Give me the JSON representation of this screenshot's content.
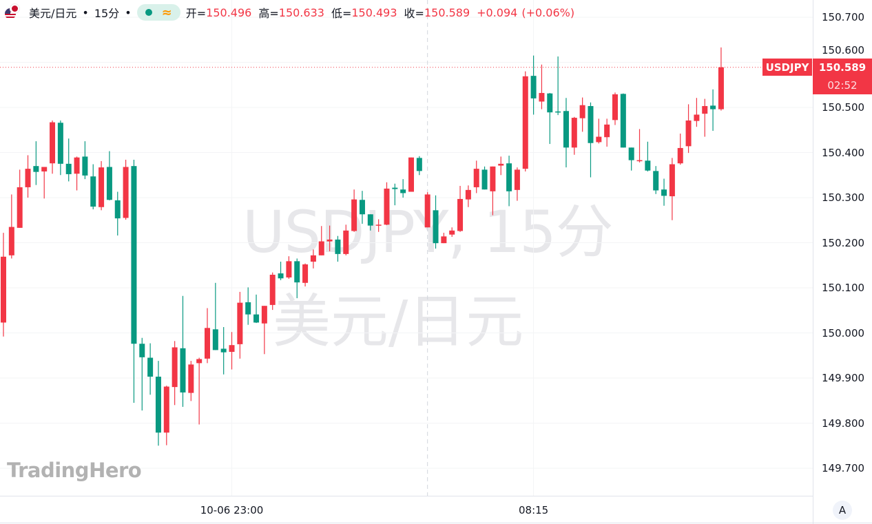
{
  "header": {
    "symbol_name": "美元/日元",
    "sep1": "•",
    "interval": "15分",
    "sep2": "•",
    "status_icon": "market-open-dot",
    "approx_icon": "≈",
    "open_label": "开=",
    "open_value": "150.496",
    "high_label": "高=",
    "high_value": "150.633",
    "low_label": "低=",
    "low_value": "150.493",
    "close_label": "收=",
    "close_value": "150.589",
    "change": "+0.094",
    "change_pct": "(+0.06%)"
  },
  "watermark": {
    "line1": "USDJPY, 15分",
    "line2": "美元/日元"
  },
  "logo": "TradingHero",
  "price_tag": {
    "symbol": "USDJPY",
    "price": "150.589",
    "countdown": "02:52"
  },
  "auto_scale_button": "A",
  "colors": {
    "up": "#F23645",
    "down": "#089981",
    "tag": "#F23645"
  },
  "chart_data": {
    "type": "candlestick",
    "title": "",
    "ylim": [
      149.66,
      150.72
    ],
    "y_ticks": [
      "150.700",
      "150.600",
      "150.500",
      "150.400",
      "150.300",
      "150.200",
      "150.100",
      "150.000",
      "149.900",
      "149.800",
      "149.700"
    ],
    "x_ticks": [
      {
        "label": "10-06 23:00",
        "at_candle": 28
      },
      {
        "label": "08:15",
        "at_candle": 65
      }
    ],
    "crosshair_at_candle": 52,
    "last_price_line": 150.589,
    "grid": true,
    "fields": [
      "open",
      "high",
      "low",
      "close"
    ],
    "candles": [
      [
        150.023,
        150.222,
        149.992,
        150.169
      ],
      [
        150.172,
        150.307,
        150.165,
        150.235
      ],
      [
        150.233,
        150.362,
        150.233,
        150.323
      ],
      [
        150.323,
        150.394,
        150.3,
        150.364
      ],
      [
        150.37,
        150.425,
        150.328,
        150.357
      ],
      [
        150.358,
        150.368,
        150.298,
        150.368
      ],
      [
        150.376,
        150.471,
        150.353,
        150.467
      ],
      [
        150.466,
        150.471,
        150.35,
        150.375
      ],
      [
        150.375,
        150.431,
        150.336,
        150.352
      ],
      [
        150.353,
        150.391,
        150.316,
        150.389
      ],
      [
        150.391,
        150.425,
        150.341,
        150.349
      ],
      [
        150.347,
        150.374,
        150.274,
        150.28
      ],
      [
        150.279,
        150.381,
        150.272,
        150.367
      ],
      [
        150.368,
        150.403,
        150.294,
        150.295
      ],
      [
        150.294,
        150.313,
        150.216,
        150.254
      ],
      [
        150.255,
        150.384,
        150.251,
        150.368
      ],
      [
        150.37,
        150.384,
        149.845,
        149.976
      ],
      [
        149.976,
        149.989,
        149.828,
        149.946
      ],
      [
        149.945,
        149.977,
        149.863,
        149.903
      ],
      [
        149.903,
        149.938,
        149.75,
        149.779
      ],
      [
        149.779,
        149.883,
        149.751,
        149.881
      ],
      [
        149.88,
        149.982,
        149.84,
        149.968
      ],
      [
        149.966,
        150.082,
        149.836,
        149.868
      ],
      [
        149.867,
        149.938,
        149.849,
        149.93
      ],
      [
        149.933,
        149.945,
        149.797,
        149.942
      ],
      [
        149.943,
        150.055,
        149.933,
        150.011
      ],
      [
        150.008,
        150.111,
        149.962,
        149.962
      ],
      [
        149.965,
        150.013,
        149.908,
        149.957
      ],
      [
        149.958,
        150.002,
        149.919,
        149.973
      ],
      [
        149.975,
        150.091,
        149.943,
        150.067
      ],
      [
        150.068,
        150.101,
        150.018,
        150.041
      ],
      [
        150.041,
        150.085,
        150.022,
        150.023
      ],
      [
        150.021,
        150.06,
        149.953,
        150.06
      ],
      [
        150.062,
        150.134,
        150.051,
        150.129
      ],
      [
        150.132,
        150.158,
        150.117,
        150.121
      ],
      [
        150.123,
        150.17,
        150.12,
        150.159
      ],
      [
        150.159,
        150.165,
        150.077,
        150.112
      ],
      [
        150.111,
        150.154,
        150.103,
        150.152
      ],
      [
        150.158,
        150.185,
        150.143,
        150.172
      ],
      [
        150.172,
        150.237,
        150.172,
        150.203
      ],
      [
        150.203,
        150.238,
        150.181,
        150.207
      ],
      [
        150.207,
        150.215,
        150.158,
        150.175
      ],
      [
        150.175,
        150.24,
        150.172,
        150.227
      ],
      [
        150.226,
        150.318,
        150.224,
        150.296
      ],
      [
        150.295,
        150.315,
        150.242,
        150.263
      ],
      [
        150.263,
        150.263,
        150.227,
        150.238
      ],
      [
        150.238,
        150.252,
        150.224,
        150.24
      ],
      [
        150.24,
        150.334,
        150.239,
        150.32
      ],
      [
        150.322,
        150.331,
        150.283,
        150.319
      ],
      [
        150.318,
        150.341,
        150.3,
        150.31
      ],
      [
        150.313,
        150.389,
        150.313,
        150.389
      ],
      [
        150.388,
        150.392,
        150.35,
        150.359
      ],
      [
        150.234,
        150.312,
        150.234,
        150.307
      ],
      [
        150.272,
        150.305,
        150.187,
        150.199
      ],
      [
        150.199,
        150.222,
        150.199,
        150.214
      ],
      [
        150.218,
        150.234,
        150.213,
        150.227
      ],
      [
        150.226,
        150.326,
        150.224,
        150.297
      ],
      [
        150.296,
        150.327,
        150.279,
        150.317
      ],
      [
        150.323,
        150.382,
        150.31,
        150.364
      ],
      [
        150.362,
        150.369,
        150.318,
        150.318
      ],
      [
        150.314,
        150.369,
        150.261,
        150.369
      ],
      [
        150.371,
        150.391,
        150.35,
        150.375
      ],
      [
        150.376,
        150.393,
        150.281,
        150.314
      ],
      [
        150.317,
        150.367,
        150.293,
        150.362
      ],
      [
        150.364,
        150.58,
        150.358,
        150.569
      ],
      [
        150.57,
        150.615,
        150.484,
        150.52
      ],
      [
        150.513,
        150.595,
        150.496,
        150.532
      ],
      [
        150.531,
        150.532,
        150.419,
        150.489
      ],
      [
        150.491,
        150.613,
        150.483,
        150.489
      ],
      [
        150.492,
        150.521,
        150.367,
        150.411
      ],
      [
        150.411,
        150.479,
        150.395,
        150.477
      ],
      [
        150.476,
        150.522,
        150.446,
        150.505
      ],
      [
        150.503,
        150.511,
        150.345,
        150.421
      ],
      [
        150.423,
        150.475,
        150.42,
        150.435
      ],
      [
        150.434,
        150.475,
        150.413,
        150.462
      ],
      [
        150.472,
        150.533,
        150.461,
        150.529
      ],
      [
        150.53,
        150.531,
        150.411,
        150.411
      ],
      [
        150.411,
        150.411,
        150.36,
        150.383
      ],
      [
        150.381,
        150.452,
        150.378,
        150.383
      ],
      [
        150.382,
        150.424,
        150.358,
        150.36
      ],
      [
        150.359,
        150.37,
        150.308,
        150.316
      ],
      [
        150.318,
        150.342,
        150.282,
        150.304
      ],
      [
        150.303,
        150.388,
        150.25,
        150.374
      ],
      [
        150.376,
        150.442,
        150.373,
        150.41
      ],
      [
        150.414,
        150.507,
        150.399,
        150.471
      ],
      [
        150.47,
        150.521,
        150.457,
        150.484
      ],
      [
        150.486,
        150.519,
        150.435,
        150.503
      ],
      [
        150.504,
        150.54,
        150.448,
        150.496
      ],
      [
        150.496,
        150.633,
        150.493,
        150.589
      ]
    ]
  }
}
